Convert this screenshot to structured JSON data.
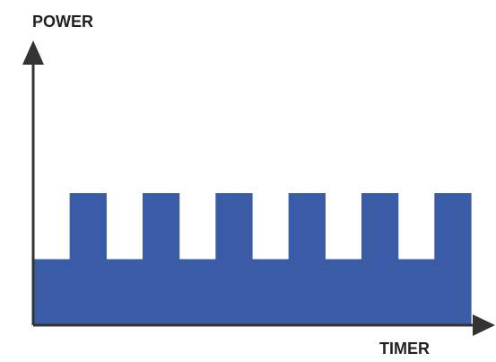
{
  "chart_data": {
    "type": "area",
    "title": "",
    "ylabel": "POWER",
    "xlabel": "TIMER",
    "colors": {
      "fill": "#3a5ba5",
      "axis": "#333333"
    },
    "grid": false,
    "legend": "none",
    "series": [
      {
        "values": [
          {
            "start": 0,
            "end": 1,
            "level": 1
          },
          {
            "start": 1,
            "end": 2,
            "level": 2
          },
          {
            "start": 2,
            "end": 3,
            "level": 1
          },
          {
            "start": 3,
            "end": 4,
            "level": 2
          },
          {
            "start": 4,
            "end": 5,
            "level": 1
          },
          {
            "start": 5,
            "end": 6,
            "level": 2
          },
          {
            "start": 6,
            "end": 7,
            "level": 1
          },
          {
            "start": 7,
            "end": 8,
            "level": 2
          },
          {
            "start": 8,
            "end": 9,
            "level": 1
          },
          {
            "start": 9,
            "end": 10,
            "level": 2
          },
          {
            "start": 10,
            "end": 11,
            "level": 1
          },
          {
            "start": 11,
            "end": 12,
            "level": 2
          }
        ]
      }
    ],
    "xlim": [
      0,
      12
    ],
    "ylim": [
      0,
      2
    ]
  }
}
